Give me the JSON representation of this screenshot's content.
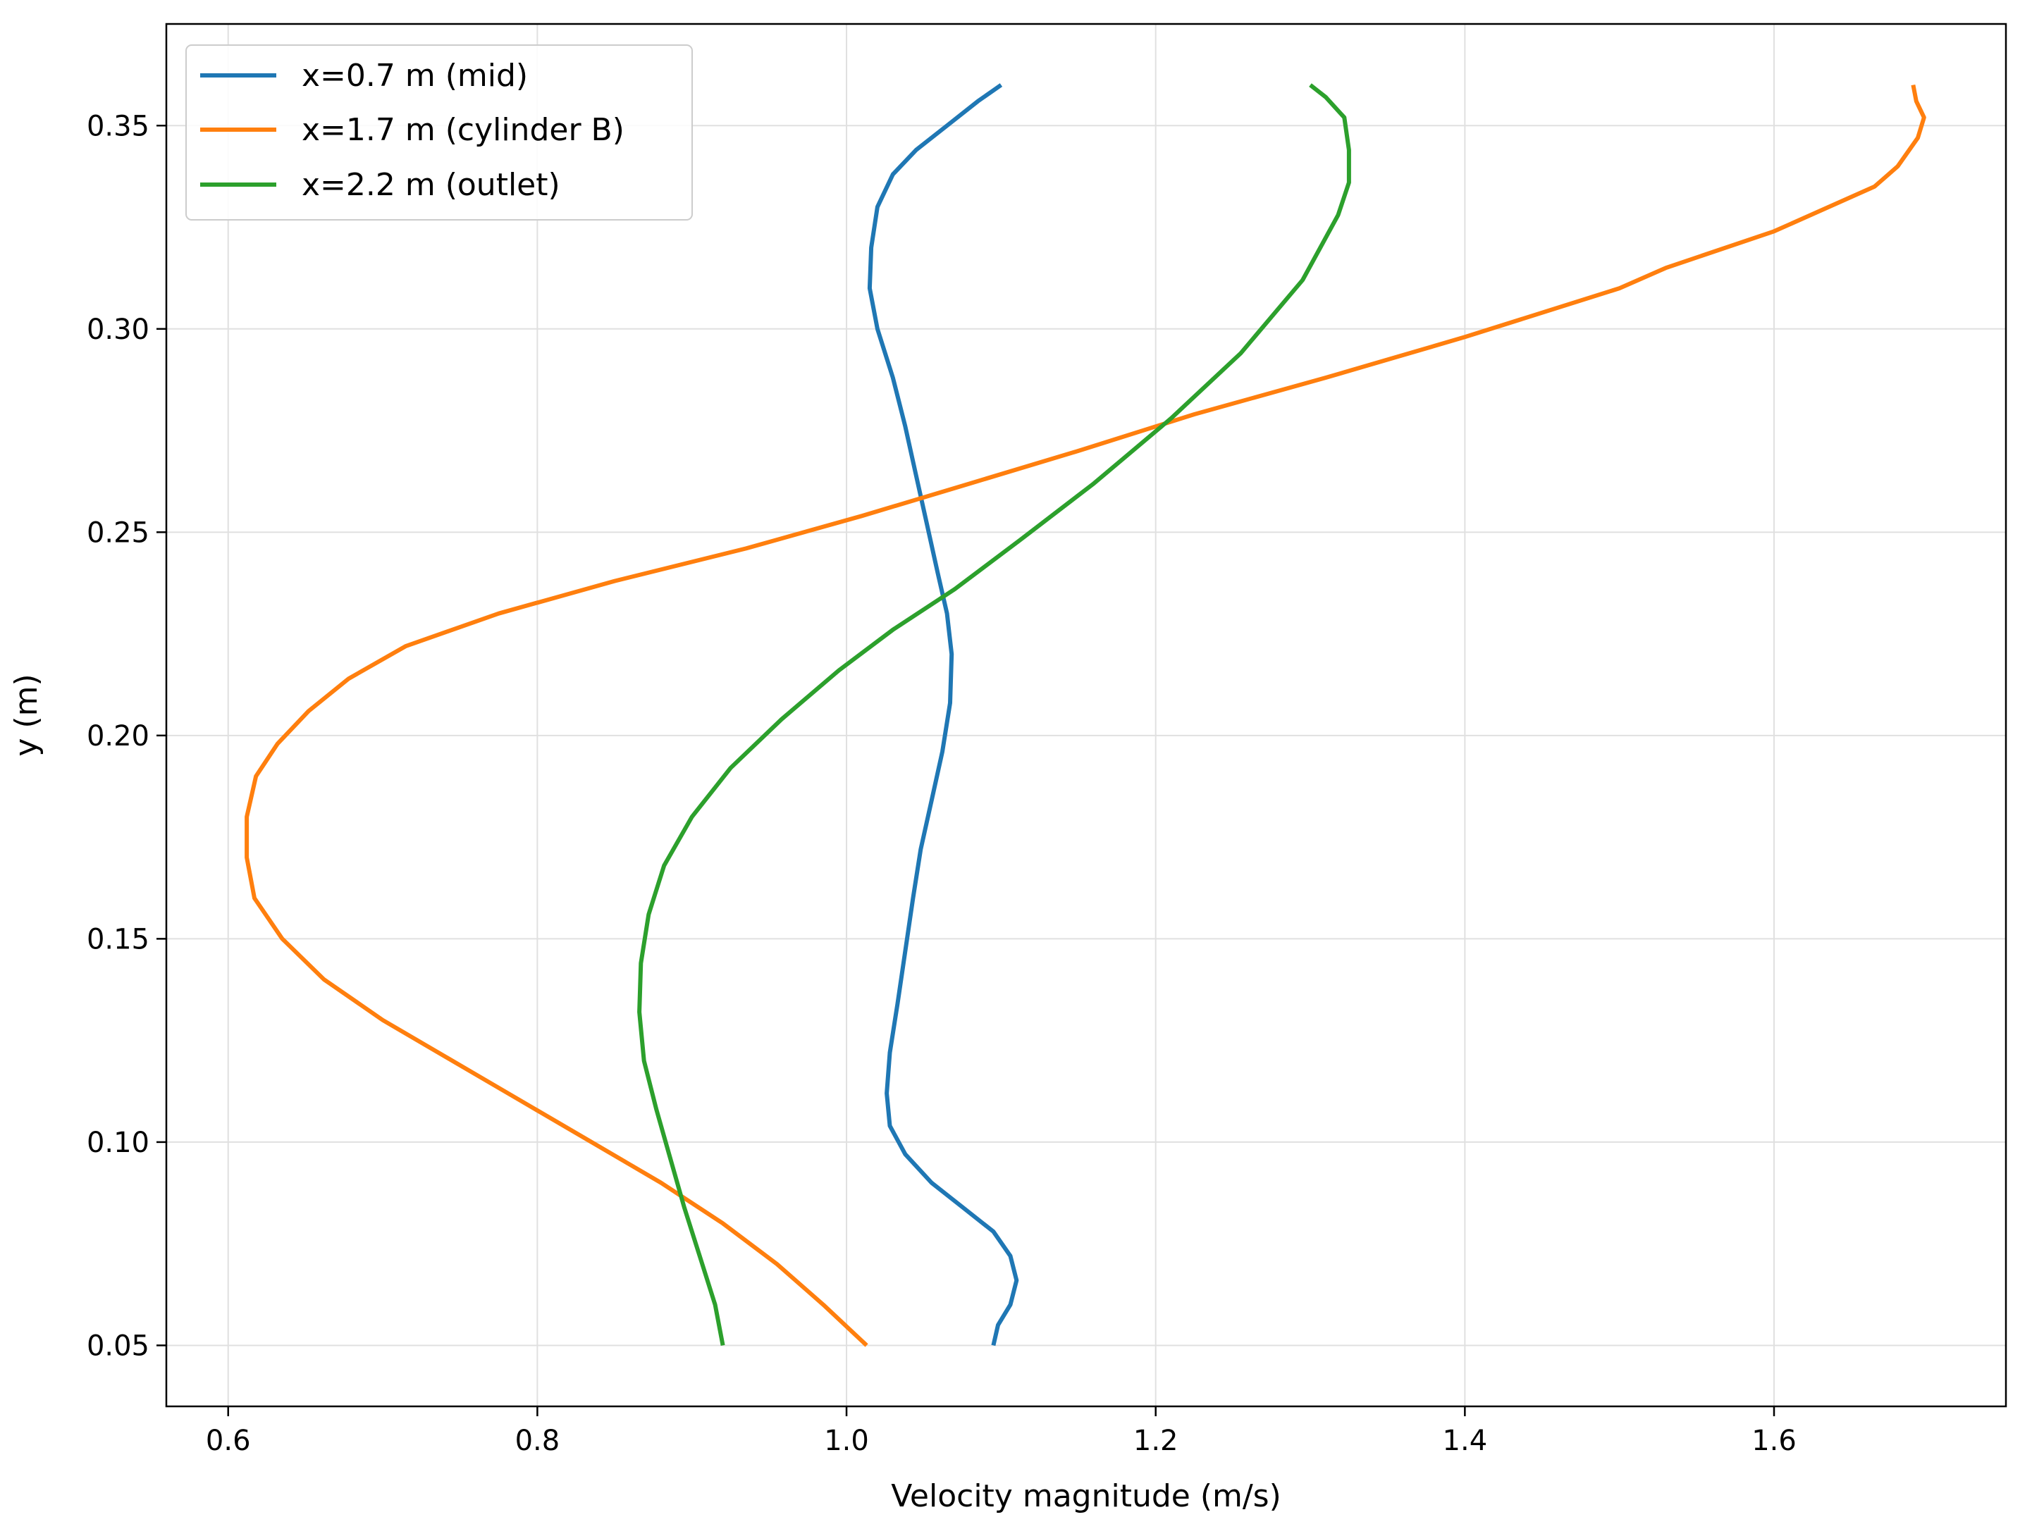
{
  "chart_data": {
    "type": "line",
    "title": "",
    "xlabel": "Velocity magnitude (m/s)",
    "ylabel": "y (m)",
    "xlim": [
      0.56,
      1.75
    ],
    "ylim": [
      0.035,
      0.375
    ],
    "xticks": [
      0.6,
      0.8,
      1.0,
      1.2,
      1.4,
      1.6
    ],
    "xtick_labels": [
      "0.6",
      "0.8",
      "1.0",
      "1.2",
      "1.4",
      "1.6"
    ],
    "yticks": [
      0.05,
      0.1,
      0.15,
      0.2,
      0.25,
      0.3,
      0.35
    ],
    "ytick_labels": [
      "0.05",
      "0.10",
      "0.15",
      "0.20",
      "0.25",
      "0.30",
      "0.35"
    ],
    "grid": true,
    "legend_position": "top-left",
    "series": [
      {
        "name": "x=0.7 m (mid)",
        "color": "#1f77b4",
        "points": [
          [
            1.095,
            0.05
          ],
          [
            1.098,
            0.055
          ],
          [
            1.106,
            0.06
          ],
          [
            1.11,
            0.066
          ],
          [
            1.106,
            0.072
          ],
          [
            1.095,
            0.078
          ],
          [
            1.075,
            0.084
          ],
          [
            1.055,
            0.09
          ],
          [
            1.038,
            0.097
          ],
          [
            1.028,
            0.104
          ],
          [
            1.026,
            0.112
          ],
          [
            1.028,
            0.122
          ],
          [
            1.033,
            0.134
          ],
          [
            1.038,
            0.147
          ],
          [
            1.043,
            0.16
          ],
          [
            1.048,
            0.172
          ],
          [
            1.055,
            0.184
          ],
          [
            1.062,
            0.196
          ],
          [
            1.067,
            0.208
          ],
          [
            1.068,
            0.22
          ],
          [
            1.065,
            0.23
          ],
          [
            1.059,
            0.24
          ],
          [
            1.052,
            0.252
          ],
          [
            1.045,
            0.264
          ],
          [
            1.038,
            0.276
          ],
          [
            1.03,
            0.288
          ],
          [
            1.02,
            0.3
          ],
          [
            1.015,
            0.31
          ],
          [
            1.016,
            0.32
          ],
          [
            1.02,
            0.33
          ],
          [
            1.03,
            0.338
          ],
          [
            1.045,
            0.344
          ],
          [
            1.065,
            0.35
          ],
          [
            1.085,
            0.356
          ],
          [
            1.1,
            0.36
          ]
        ]
      },
      {
        "name": "x=1.7 m (cylinder B)",
        "color": "#ff7f0e",
        "points": [
          [
            1.013,
            0.05
          ],
          [
            0.985,
            0.06
          ],
          [
            0.955,
            0.07
          ],
          [
            0.92,
            0.08
          ],
          [
            0.88,
            0.09
          ],
          [
            0.835,
            0.1
          ],
          [
            0.79,
            0.11
          ],
          [
            0.745,
            0.12
          ],
          [
            0.7,
            0.13
          ],
          [
            0.662,
            0.14
          ],
          [
            0.635,
            0.15
          ],
          [
            0.617,
            0.16
          ],
          [
            0.612,
            0.17
          ],
          [
            0.612,
            0.18
          ],
          [
            0.618,
            0.19
          ],
          [
            0.632,
            0.198
          ],
          [
            0.652,
            0.206
          ],
          [
            0.678,
            0.214
          ],
          [
            0.715,
            0.222
          ],
          [
            0.775,
            0.23
          ],
          [
            0.85,
            0.238
          ],
          [
            0.935,
            0.246
          ],
          [
            1.01,
            0.254
          ],
          [
            1.08,
            0.262
          ],
          [
            1.15,
            0.27
          ],
          [
            1.225,
            0.279
          ],
          [
            1.31,
            0.288
          ],
          [
            1.4,
            0.298
          ],
          [
            1.5,
            0.31
          ],
          [
            1.53,
            0.315
          ],
          [
            1.6,
            0.324
          ],
          [
            1.665,
            0.335
          ],
          [
            1.68,
            0.34
          ],
          [
            1.693,
            0.347
          ],
          [
            1.697,
            0.352
          ],
          [
            1.692,
            0.356
          ],
          [
            1.69,
            0.36
          ]
        ]
      },
      {
        "name": "x=2.2 m (outlet)",
        "color": "#2ca02c",
        "points": [
          [
            0.92,
            0.05
          ],
          [
            0.915,
            0.06
          ],
          [
            0.905,
            0.072
          ],
          [
            0.895,
            0.084
          ],
          [
            0.886,
            0.096
          ],
          [
            0.877,
            0.108
          ],
          [
            0.869,
            0.12
          ],
          [
            0.866,
            0.132
          ],
          [
            0.867,
            0.144
          ],
          [
            0.872,
            0.156
          ],
          [
            0.882,
            0.168
          ],
          [
            0.9,
            0.18
          ],
          [
            0.925,
            0.192
          ],
          [
            0.958,
            0.204
          ],
          [
            0.995,
            0.216
          ],
          [
            1.03,
            0.226
          ],
          [
            1.07,
            0.236
          ],
          [
            1.112,
            0.248
          ],
          [
            1.16,
            0.262
          ],
          [
            1.21,
            0.278
          ],
          [
            1.255,
            0.294
          ],
          [
            1.295,
            0.312
          ],
          [
            1.318,
            0.328
          ],
          [
            1.325,
            0.336
          ],
          [
            1.325,
            0.344
          ],
          [
            1.322,
            0.352
          ],
          [
            1.31,
            0.357
          ],
          [
            1.3,
            0.36
          ]
        ]
      }
    ]
  }
}
